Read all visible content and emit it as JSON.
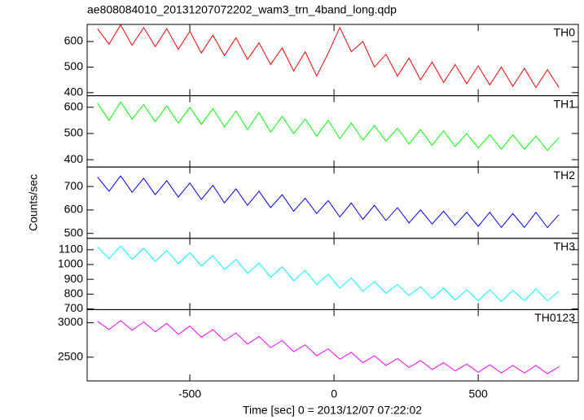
{
  "figure": {
    "title": "ae808084010_20131207072202_wam3_trn_4band_long.qdp",
    "xlabel": "Time [sec] 0 = 2013/12/07 07:22:02",
    "ylabel": "Counts/sec"
  },
  "chart_data": [
    {
      "type": "line",
      "xlim": [
        -856,
        847
      ],
      "xticks": [
        -500,
        0,
        500
      ],
      "ylim": [
        388,
        667
      ],
      "yticks": [
        400,
        500,
        600
      ],
      "x": [
        -820,
        -780,
        -740,
        -700,
        -660,
        -620,
        -580,
        -540,
        -500,
        -460,
        -420,
        -380,
        -340,
        -300,
        -260,
        -220,
        -180,
        -140,
        -100,
        -60,
        -20,
        20,
        60,
        100,
        140,
        180,
        220,
        260,
        300,
        340,
        380,
        420,
        460,
        500,
        540,
        580,
        620,
        660,
        700,
        740,
        780
      ],
      "series": [
        {
          "name": "TH0",
          "color": "#ff0000",
          "values": [
            650,
            590,
            665,
            585,
            655,
            580,
            650,
            570,
            640,
            555,
            625,
            545,
            615,
            530,
            595,
            510,
            575,
            485,
            560,
            465,
            555,
            655,
            560,
            600,
            500,
            550,
            465,
            535,
            450,
            520,
            440,
            510,
            435,
            505,
            430,
            500,
            425,
            495,
            420,
            490,
            420
          ]
        }
      ]
    },
    {
      "type": "line",
      "xlim": [
        -856,
        847
      ],
      "xticks": [
        -500,
        0,
        500
      ],
      "ylim": [
        372,
        644
      ],
      "yticks": [
        400,
        500,
        600
      ],
      "x": [
        -820,
        -780,
        -740,
        -700,
        -660,
        -620,
        -580,
        -540,
        -500,
        -460,
        -420,
        -380,
        -340,
        -300,
        -260,
        -220,
        -180,
        -140,
        -100,
        -60,
        -20,
        20,
        60,
        100,
        140,
        180,
        220,
        260,
        300,
        340,
        380,
        420,
        460,
        500,
        540,
        580,
        620,
        660,
        700,
        740,
        780
      ],
      "series": [
        {
          "name": "TH1",
          "color": "#00ff00",
          "values": [
            615,
            550,
            620,
            555,
            610,
            545,
            605,
            540,
            600,
            535,
            595,
            525,
            585,
            515,
            580,
            505,
            565,
            500,
            555,
            490,
            550,
            480,
            540,
            475,
            530,
            470,
            520,
            460,
            515,
            455,
            510,
            450,
            500,
            445,
            495,
            440,
            495,
            440,
            490,
            435,
            485
          ]
        }
      ]
    },
    {
      "type": "line",
      "xlim": [
        -856,
        847
      ],
      "xticks": [
        -500,
        0,
        500
      ],
      "ylim": [
        479,
        783
      ],
      "yticks": [
        500,
        600,
        700
      ],
      "x": [
        -820,
        -780,
        -740,
        -700,
        -660,
        -620,
        -580,
        -540,
        -500,
        -460,
        -420,
        -380,
        -340,
        -300,
        -260,
        -220,
        -180,
        -140,
        -100,
        -60,
        -20,
        20,
        60,
        100,
        140,
        180,
        220,
        260,
        300,
        340,
        380,
        420,
        460,
        500,
        540,
        580,
        620,
        660,
        700,
        740,
        780
      ],
      "series": [
        {
          "name": "TH2",
          "color": "#0000ff",
          "values": [
            740,
            680,
            745,
            675,
            735,
            665,
            725,
            655,
            715,
            645,
            705,
            630,
            690,
            620,
            680,
            610,
            665,
            595,
            650,
            585,
            640,
            570,
            630,
            560,
            620,
            555,
            610,
            545,
            600,
            540,
            595,
            535,
            590,
            530,
            590,
            525,
            585,
            525,
            590,
            525,
            580
          ]
        }
      ]
    },
    {
      "type": "line",
      "xlim": [
        -856,
        847
      ],
      "xticks": [
        -500,
        0,
        500
      ],
      "ylim": [
        695,
        1177
      ],
      "yticks": [
        700,
        800,
        900,
        1000,
        1100
      ],
      "x": [
        -820,
        -780,
        -740,
        -700,
        -660,
        -620,
        -580,
        -540,
        -500,
        -460,
        -420,
        -380,
        -340,
        -300,
        -260,
        -220,
        -180,
        -140,
        -100,
        -60,
        -20,
        20,
        60,
        100,
        140,
        180,
        220,
        260,
        300,
        340,
        380,
        420,
        460,
        500,
        540,
        580,
        620,
        660,
        700,
        740,
        780
      ],
      "series": [
        {
          "name": "TH3",
          "color": "#00ffff",
          "values": [
            1120,
            1040,
            1125,
            1035,
            1110,
            1020,
            1095,
            1005,
            1080,
            990,
            1060,
            965,
            1035,
            940,
            1010,
            915,
            985,
            890,
            960,
            865,
            935,
            840,
            910,
            820,
            885,
            805,
            865,
            790,
            850,
            770,
            840,
            760,
            830,
            755,
            830,
            750,
            825,
            755,
            835,
            755,
            820
          ]
        }
      ]
    },
    {
      "type": "line",
      "xlim": [
        -856,
        847
      ],
      "xticks": [
        -500,
        0,
        500
      ],
      "ylim": [
        2155,
        3190
      ],
      "yticks": [
        2500,
        3000
      ],
      "x": [
        -820,
        -780,
        -740,
        -700,
        -660,
        -620,
        -580,
        -540,
        -500,
        -460,
        -420,
        -380,
        -340,
        -300,
        -260,
        -220,
        -180,
        -140,
        -100,
        -60,
        -20,
        20,
        60,
        100,
        140,
        180,
        220,
        260,
        300,
        340,
        380,
        420,
        460,
        500,
        540,
        580,
        620,
        660,
        700,
        740,
        780
      ],
      "series": [
        {
          "name": "TH0123",
          "color": "#ff00ff",
          "values": [
            3020,
            2900,
            3030,
            2890,
            3010,
            2870,
            2990,
            2830,
            2950,
            2790,
            2900,
            2740,
            2850,
            2690,
            2800,
            2640,
            2740,
            2580,
            2680,
            2520,
            2620,
            2470,
            2570,
            2420,
            2520,
            2380,
            2480,
            2350,
            2450,
            2320,
            2420,
            2300,
            2400,
            2280,
            2390,
            2270,
            2380,
            2270,
            2380,
            2260,
            2360
          ]
        }
      ]
    }
  ]
}
